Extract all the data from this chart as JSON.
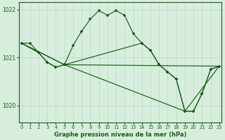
{
  "xlabel": "Graphe pression niveau de la mer (hPa)",
  "bg_color": "#d8eedd",
  "grid_color": "#b8d8c8",
  "line_color": "#1a5c1a",
  "marker": "+",
  "ylim": [
    1019.65,
    1022.15
  ],
  "xlim": [
    -0.3,
    23.3
  ],
  "yticks": [
    1020,
    1021,
    1022
  ],
  "xticks": [
    0,
    1,
    2,
    3,
    4,
    5,
    6,
    7,
    8,
    9,
    10,
    11,
    12,
    13,
    14,
    15,
    16,
    17,
    18,
    19,
    20,
    21,
    22,
    23
  ],
  "line1_x": [
    0,
    1,
    2,
    3,
    4,
    5,
    6,
    7,
    8,
    9,
    10,
    11,
    12,
    13,
    14,
    15,
    16,
    17,
    18,
    19,
    20,
    21,
    22,
    23
  ],
  "line1_y": [
    1021.3,
    1021.3,
    1021.1,
    1020.9,
    1020.8,
    1020.85,
    1021.25,
    1021.55,
    1021.8,
    1021.98,
    1021.88,
    1021.98,
    1021.88,
    1021.5,
    1021.3,
    1021.15,
    1020.85,
    1020.7,
    1020.55,
    1019.88,
    1019.88,
    1020.25,
    1020.75,
    1020.82
  ],
  "line2_x": [
    0,
    2,
    3,
    4,
    5,
    14,
    15,
    16,
    17,
    18,
    19,
    20,
    21,
    22,
    23
  ],
  "line2_y": [
    1021.3,
    1021.1,
    1020.9,
    1020.8,
    1020.85,
    1021.3,
    1021.15,
    1020.85,
    1020.7,
    1020.55,
    1019.88,
    1019.88,
    1020.25,
    1020.75,
    1020.82
  ],
  "line3_x": [
    0,
    5,
    23
  ],
  "line3_y": [
    1021.3,
    1020.85,
    1020.82
  ],
  "line4_x": [
    0,
    5,
    19,
    23
  ],
  "line4_y": [
    1021.3,
    1020.85,
    1019.88,
    1020.82
  ]
}
